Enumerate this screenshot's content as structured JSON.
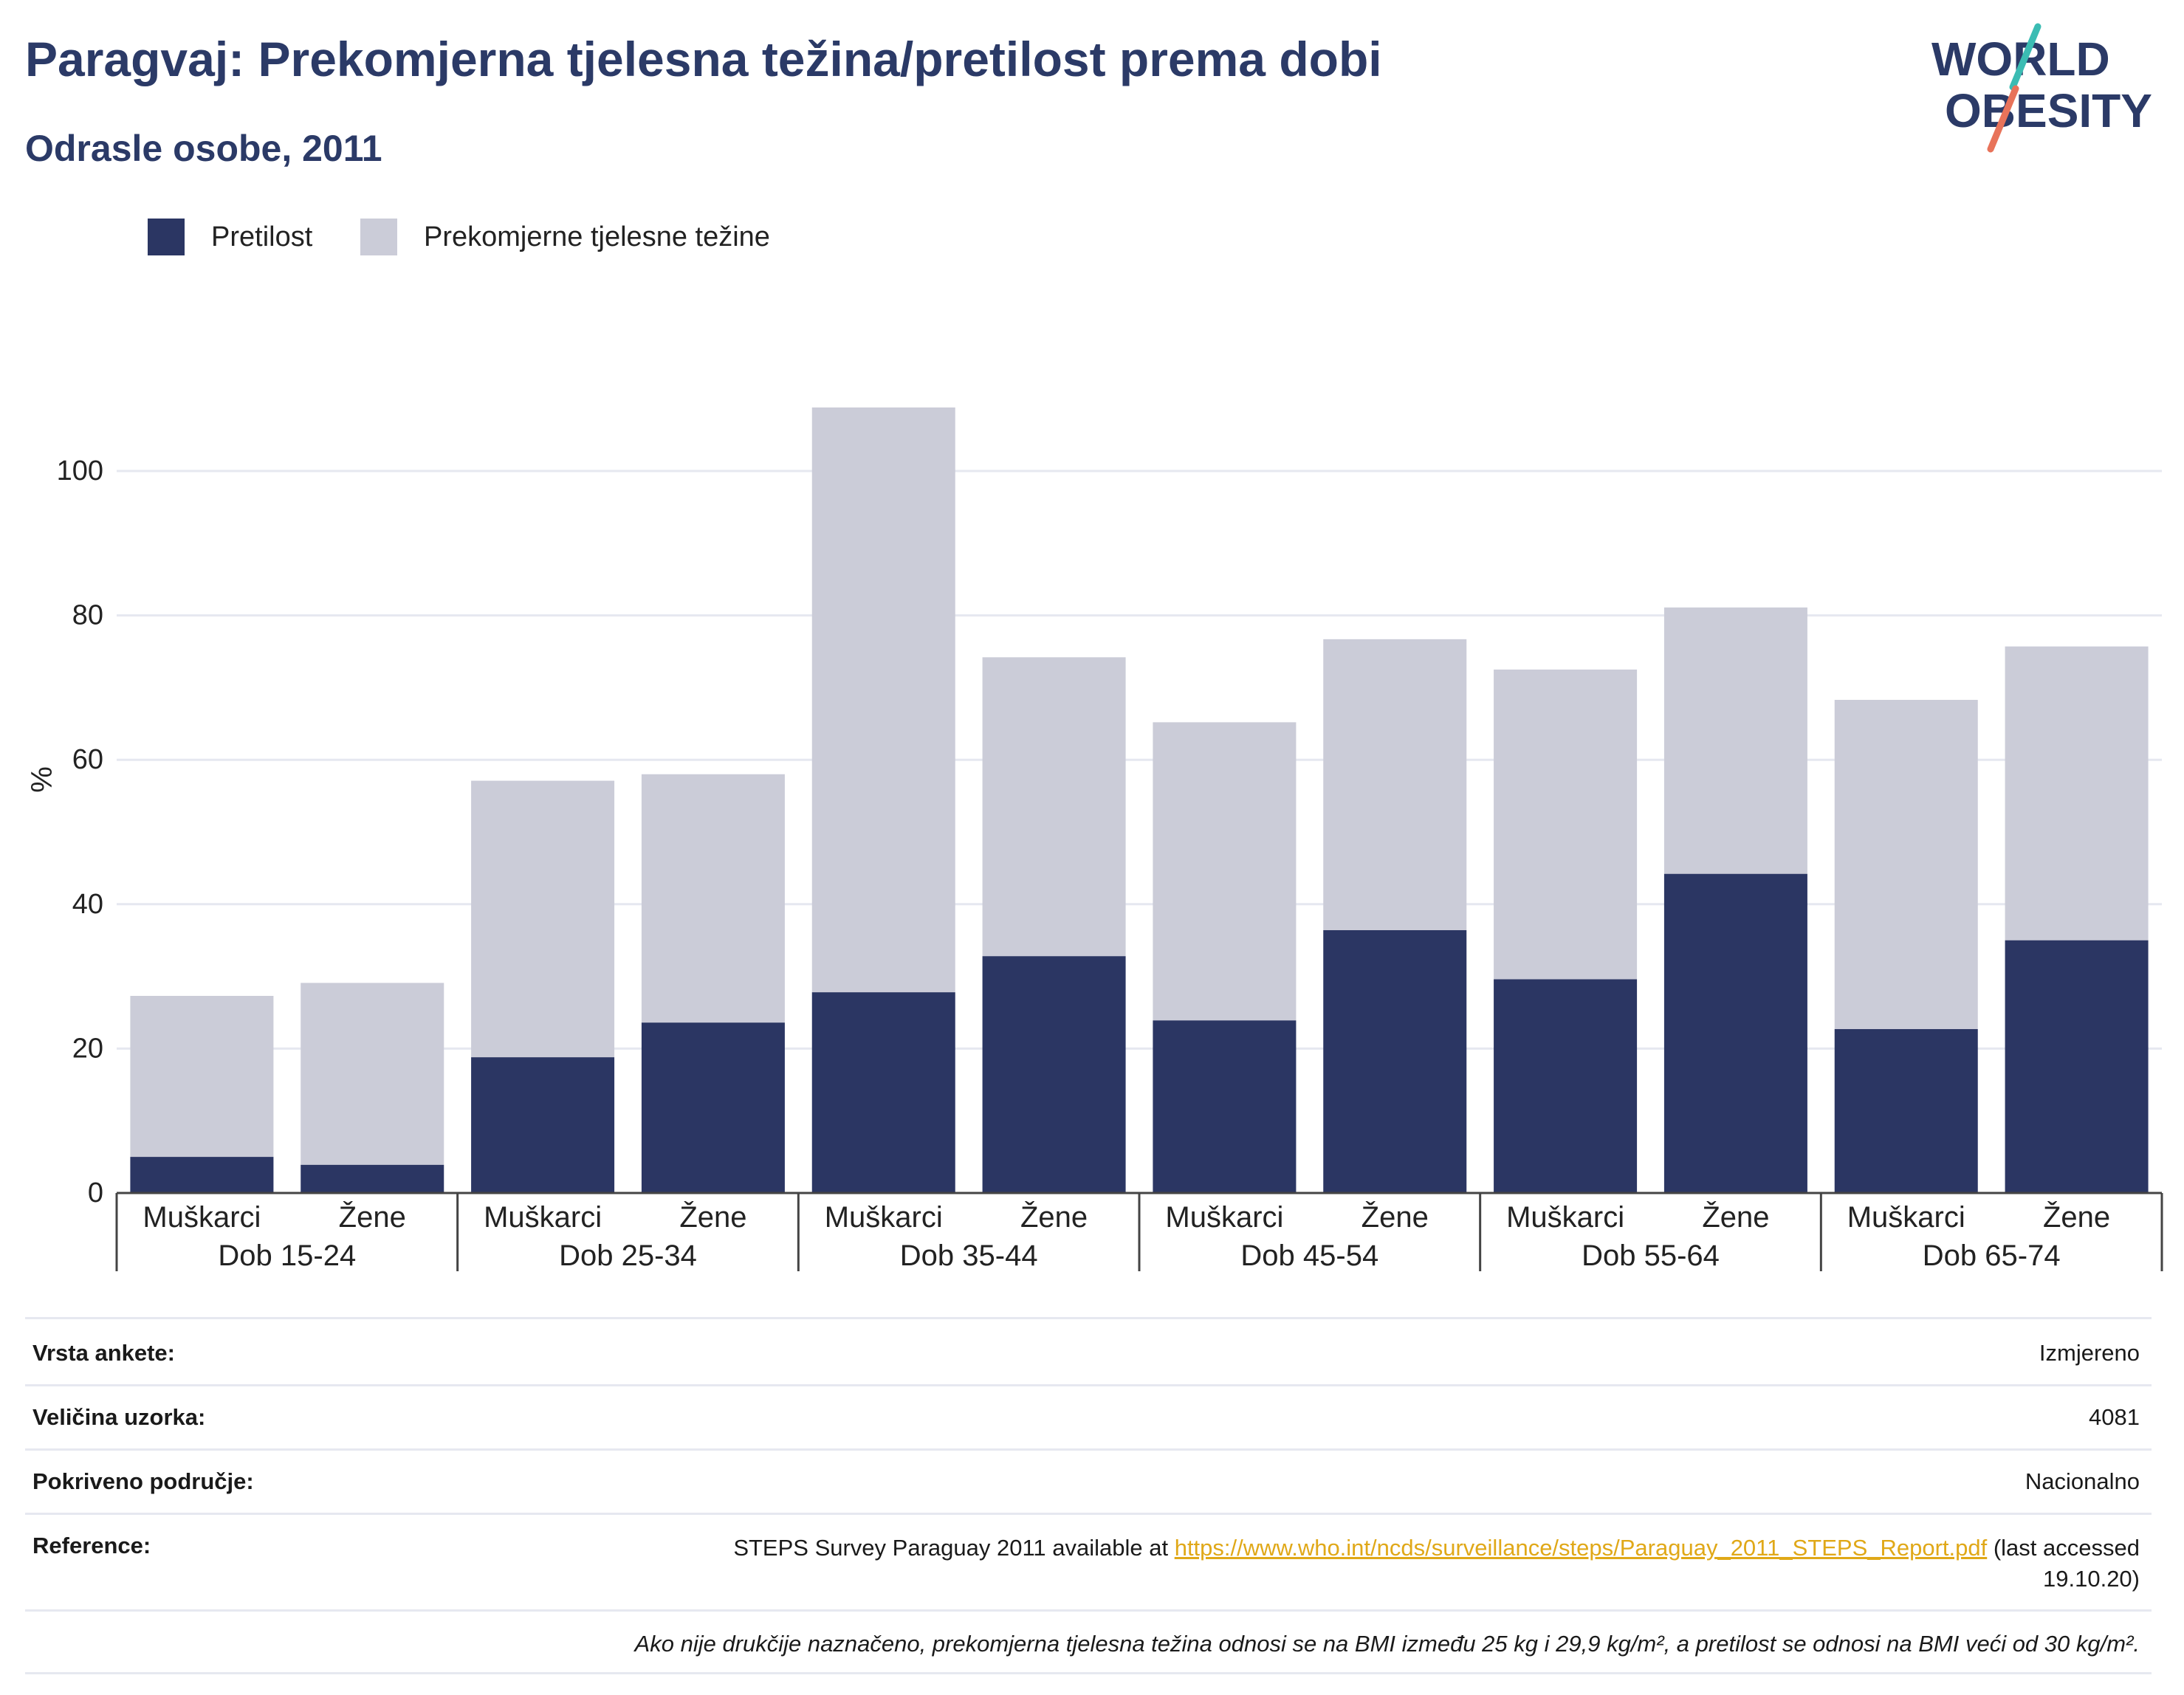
{
  "header": {
    "title": "Paragvaj: Prekomjerna tjelesna težina/pretilost prema dobi",
    "subtitle": "Odrasle osobe, 2011"
  },
  "logo": {
    "line1": "WORLD",
    "line2": "OBESITY"
  },
  "colors": {
    "obesity": "#2b3663",
    "overweight": "#cbccd8",
    "title": "#2b3a67",
    "link": "#e0a818"
  },
  "legend": [
    {
      "label": "Pretilost",
      "color": "#2b3663"
    },
    {
      "label": "Prekomjerne tjelesne težine",
      "color": "#cbccd8"
    }
  ],
  "chart_data": {
    "type": "bar",
    "stacked": true,
    "ylabel": "%",
    "ylim": [
      0,
      110
    ],
    "yticks": [
      0,
      20,
      40,
      60,
      80,
      100
    ],
    "grid": true,
    "legend_position": "top-left",
    "groups": [
      "Dob 15-24",
      "Dob 25-34",
      "Dob 35-44",
      "Dob 45-54",
      "Dob 55-64",
      "Dob 65-74"
    ],
    "sexes": [
      "Muškarci",
      "Žene"
    ],
    "categories": [
      "Muškarci Dob 15-24",
      "Žene Dob 15-24",
      "Muškarci Dob 25-34",
      "Žene Dob 25-34",
      "Muškarci Dob 35-44",
      "Žene Dob 35-44",
      "Muškarci Dob 45-54",
      "Žene Dob 45-54",
      "Muškarci Dob 55-64",
      "Žene Dob 55-64",
      "Muškarci Dob 65-74",
      "Žene Dob 65-74"
    ],
    "series": [
      {
        "name": "Pretilost",
        "values": [
          5.0,
          3.9,
          18.8,
          23.6,
          27.8,
          32.8,
          23.9,
          36.4,
          29.6,
          44.2,
          22.7,
          35.0
        ]
      },
      {
        "name": "Prekomjerne tjelesne težine",
        "values": [
          22.3,
          25.2,
          38.3,
          34.4,
          81.0,
          41.4,
          41.3,
          40.3,
          42.9,
          36.9,
          45.6,
          40.7
        ]
      }
    ]
  },
  "info": {
    "survey_type_label": "Vrsta ankete:",
    "survey_type_value": "Izmjereno",
    "sample_size_label": "Veličina uzorka:",
    "sample_size_value": "4081",
    "coverage_label": "Pokriveno područje:",
    "coverage_value": "Nacionalno",
    "reference_label": "Reference:",
    "reference_prefix": "STEPS Survey Paraguay 2011 available at ",
    "reference_link": "https://www.who.int/ncds/surveillance/steps/Paraguay_2011_STEPS_Report.pdf",
    "reference_suffix": " (last accessed 19.10.20)",
    "note": "Ako nije drukčije naznačeno, prekomjerna tjelesna težina odnosi se na BMI između 25 kg i 29,9 kg/m², a pretilost se odnosi na BMI veći od 30 kg/m²."
  }
}
